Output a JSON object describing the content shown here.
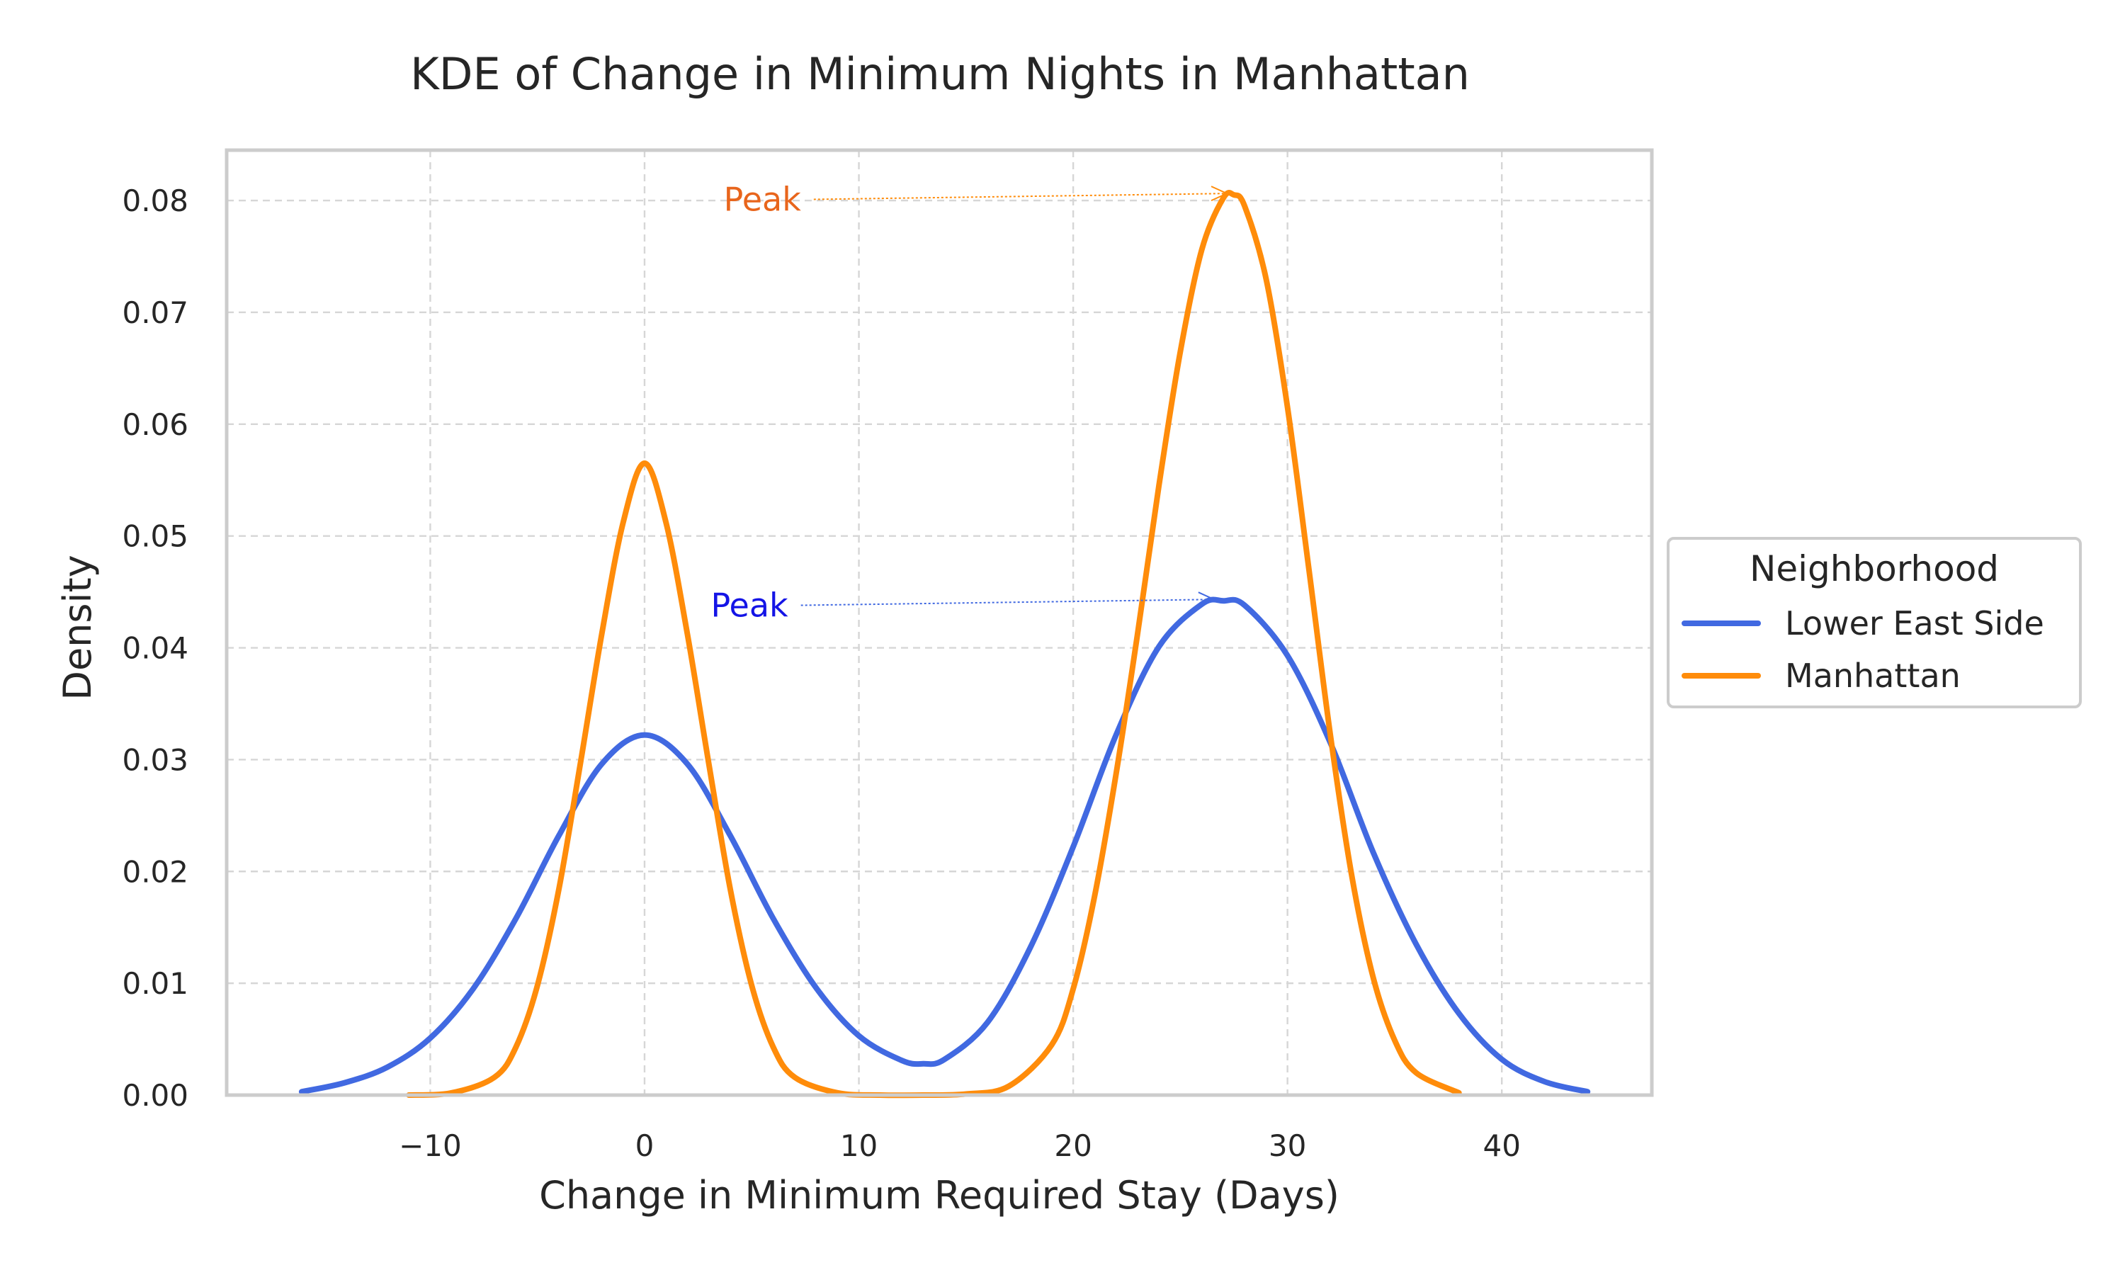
{
  "chart_data": {
    "type": "line",
    "title": "KDE of Change in Minimum Nights in Manhattan",
    "xlabel": "Change in Minimum Required Stay (Days)",
    "ylabel": "Density",
    "xlim": [
      -19.5,
      47
    ],
    "ylim": [
      0,
      0.0845
    ],
    "grid": true,
    "legend": {
      "title": "Neighborhood",
      "placement": "outside-right"
    },
    "x_ticks": [
      -10,
      0,
      10,
      20,
      30,
      40
    ],
    "x_tick_labels": [
      "−10",
      "0",
      "10",
      "20",
      "30",
      "40"
    ],
    "y_ticks": [
      0,
      0.01,
      0.02,
      0.03,
      0.04,
      0.05,
      0.06,
      0.07,
      0.08
    ],
    "y_tick_labels": [
      "0.00",
      "0.01",
      "0.02",
      "0.03",
      "0.04",
      "0.05",
      "0.06",
      "0.07",
      "0.08"
    ],
    "series": [
      {
        "name": "Lower East Side",
        "color": "#4169E1",
        "x": [
          -16,
          -14,
          -12,
          -10,
          -8,
          -6,
          -4,
          -2,
          0,
          2,
          4,
          6,
          8,
          10,
          12,
          13,
          14,
          16,
          18,
          20,
          22,
          24,
          26,
          27,
          28,
          30,
          32,
          34,
          36,
          38,
          40,
          42,
          44
        ],
        "values": [
          0.0003,
          0.0011,
          0.0025,
          0.0051,
          0.0095,
          0.0158,
          0.0232,
          0.0296,
          0.0322,
          0.0296,
          0.0232,
          0.0158,
          0.0096,
          0.0053,
          0.0031,
          0.0028,
          0.0032,
          0.0065,
          0.0132,
          0.0222,
          0.0322,
          0.0401,
          0.0439,
          0.0442,
          0.0438,
          0.0393,
          0.0315,
          0.0217,
          0.0135,
          0.0073,
          0.0032,
          0.0012,
          0.0003
        ]
      },
      {
        "name": "Manhattan",
        "color": "#FF8C0A",
        "x": [
          -11,
          -9,
          -7,
          -6,
          -5,
          -4,
          -3,
          -2,
          -1,
          0,
          1,
          2,
          3,
          4,
          5,
          6,
          7,
          9,
          11,
          13,
          15,
          17,
          19,
          20,
          21,
          22,
          23,
          24,
          25,
          26,
          27,
          27.5,
          28,
          29,
          30,
          31,
          32,
          33,
          34,
          35,
          36,
          38
        ],
        "values": [
          0.0,
          0.0002,
          0.0016,
          0.0043,
          0.0098,
          0.0184,
          0.0296,
          0.0412,
          0.0512,
          0.0565,
          0.0512,
          0.0412,
          0.0296,
          0.0184,
          0.0098,
          0.0043,
          0.0016,
          0.0002,
          0.0,
          0.0,
          0.0001,
          0.0008,
          0.0045,
          0.0095,
          0.0178,
          0.0287,
          0.0412,
          0.0545,
          0.0665,
          0.0756,
          0.0802,
          0.0805,
          0.0795,
          0.073,
          0.0615,
          0.047,
          0.0322,
          0.0196,
          0.0105,
          0.0049,
          0.002,
          0.0002
        ]
      }
    ],
    "annotations": [
      {
        "text": "Peak",
        "color": "#E8651C",
        "arrow_color": "#FF8C0A",
        "text_x": 7.3,
        "text_y": 0.0801,
        "target_x": 27.5,
        "target_y": 0.0805
      },
      {
        "text": "Peak",
        "color": "#1414E6",
        "arrow_color": "#4169E1",
        "text_x": 6.7,
        "text_y": 0.0438,
        "target_x": 26.9,
        "target_y": 0.0442
      }
    ]
  }
}
